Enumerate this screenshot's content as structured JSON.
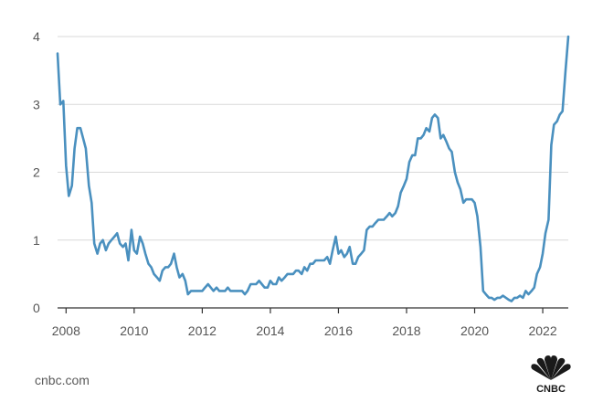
{
  "source": "cnbc.com",
  "logo_text": "CNBC",
  "colors": {
    "line": "#4a90bf",
    "grid": "#d9d9d9",
    "axis": "#333333",
    "text": "#555555"
  },
  "chart_data": {
    "type": "line",
    "xlim": [
      2007.75,
      2022.75
    ],
    "ylim": [
      0,
      4
    ],
    "yticks": [
      0,
      1,
      2,
      3,
      4
    ],
    "xticks": [
      2008,
      2010,
      2012,
      2014,
      2016,
      2018,
      2020,
      2022
    ],
    "grid": "horizontal",
    "series": [
      {
        "points": [
          [
            2007.75,
            3.75
          ],
          [
            2007.83,
            3.0
          ],
          [
            2007.92,
            3.05
          ],
          [
            2008.0,
            2.1
          ],
          [
            2008.08,
            1.65
          ],
          [
            2008.17,
            1.8
          ],
          [
            2008.25,
            2.35
          ],
          [
            2008.33,
            2.65
          ],
          [
            2008.42,
            2.65
          ],
          [
            2008.5,
            2.5
          ],
          [
            2008.58,
            2.35
          ],
          [
            2008.67,
            1.8
          ],
          [
            2008.75,
            1.55
          ],
          [
            2008.83,
            0.95
          ],
          [
            2008.92,
            0.8
          ],
          [
            2009.0,
            0.95
          ],
          [
            2009.08,
            1.0
          ],
          [
            2009.17,
            0.85
          ],
          [
            2009.25,
            0.95
          ],
          [
            2009.33,
            1.0
          ],
          [
            2009.42,
            1.05
          ],
          [
            2009.5,
            1.1
          ],
          [
            2009.58,
            0.95
          ],
          [
            2009.67,
            0.9
          ],
          [
            2009.75,
            0.95
          ],
          [
            2009.83,
            0.7
          ],
          [
            2009.92,
            1.15
          ],
          [
            2010.0,
            0.85
          ],
          [
            2010.08,
            0.8
          ],
          [
            2010.17,
            1.05
          ],
          [
            2010.25,
            0.95
          ],
          [
            2010.33,
            0.8
          ],
          [
            2010.42,
            0.65
          ],
          [
            2010.5,
            0.6
          ],
          [
            2010.58,
            0.5
          ],
          [
            2010.67,
            0.45
          ],
          [
            2010.75,
            0.4
          ],
          [
            2010.83,
            0.55
          ],
          [
            2010.92,
            0.6
          ],
          [
            2011.0,
            0.6
          ],
          [
            2011.08,
            0.65
          ],
          [
            2011.17,
            0.8
          ],
          [
            2011.25,
            0.6
          ],
          [
            2011.33,
            0.45
          ],
          [
            2011.42,
            0.5
          ],
          [
            2011.5,
            0.4
          ],
          [
            2011.58,
            0.2
          ],
          [
            2011.67,
            0.25
          ],
          [
            2011.75,
            0.25
          ],
          [
            2011.83,
            0.25
          ],
          [
            2011.92,
            0.25
          ],
          [
            2012.0,
            0.25
          ],
          [
            2012.08,
            0.3
          ],
          [
            2012.17,
            0.35
          ],
          [
            2012.25,
            0.3
          ],
          [
            2012.33,
            0.25
          ],
          [
            2012.42,
            0.3
          ],
          [
            2012.5,
            0.25
          ],
          [
            2012.58,
            0.25
          ],
          [
            2012.67,
            0.25
          ],
          [
            2012.75,
            0.3
          ],
          [
            2012.83,
            0.25
          ],
          [
            2012.92,
            0.25
          ],
          [
            2013.0,
            0.25
          ],
          [
            2013.08,
            0.25
          ],
          [
            2013.17,
            0.25
          ],
          [
            2013.25,
            0.2
          ],
          [
            2013.33,
            0.25
          ],
          [
            2013.42,
            0.35
          ],
          [
            2013.5,
            0.35
          ],
          [
            2013.58,
            0.35
          ],
          [
            2013.67,
            0.4
          ],
          [
            2013.75,
            0.35
          ],
          [
            2013.83,
            0.3
          ],
          [
            2013.92,
            0.3
          ],
          [
            2014.0,
            0.4
          ],
          [
            2014.08,
            0.35
          ],
          [
            2014.17,
            0.35
          ],
          [
            2014.25,
            0.45
          ],
          [
            2014.33,
            0.4
          ],
          [
            2014.42,
            0.45
          ],
          [
            2014.5,
            0.5
          ],
          [
            2014.58,
            0.5
          ],
          [
            2014.67,
            0.5
          ],
          [
            2014.75,
            0.55
          ],
          [
            2014.83,
            0.55
          ],
          [
            2014.92,
            0.5
          ],
          [
            2015.0,
            0.6
          ],
          [
            2015.08,
            0.55
          ],
          [
            2015.17,
            0.65
          ],
          [
            2015.25,
            0.65
          ],
          [
            2015.33,
            0.7
          ],
          [
            2015.42,
            0.7
          ],
          [
            2015.5,
            0.7
          ],
          [
            2015.58,
            0.7
          ],
          [
            2015.67,
            0.75
          ],
          [
            2015.75,
            0.65
          ],
          [
            2015.83,
            0.85
          ],
          [
            2015.92,
            1.05
          ],
          [
            2016.0,
            0.8
          ],
          [
            2016.08,
            0.85
          ],
          [
            2016.17,
            0.75
          ],
          [
            2016.25,
            0.8
          ],
          [
            2016.33,
            0.9
          ],
          [
            2016.42,
            0.65
          ],
          [
            2016.5,
            0.65
          ],
          [
            2016.58,
            0.75
          ],
          [
            2016.67,
            0.8
          ],
          [
            2016.75,
            0.85
          ],
          [
            2016.83,
            1.15
          ],
          [
            2016.92,
            1.2
          ],
          [
            2017.0,
            1.2
          ],
          [
            2017.08,
            1.25
          ],
          [
            2017.17,
            1.3
          ],
          [
            2017.25,
            1.3
          ],
          [
            2017.33,
            1.3
          ],
          [
            2017.42,
            1.35
          ],
          [
            2017.5,
            1.4
          ],
          [
            2017.58,
            1.35
          ],
          [
            2017.67,
            1.4
          ],
          [
            2017.75,
            1.5
          ],
          [
            2017.83,
            1.7
          ],
          [
            2017.92,
            1.8
          ],
          [
            2018.0,
            1.9
          ],
          [
            2018.08,
            2.15
          ],
          [
            2018.17,
            2.25
          ],
          [
            2018.25,
            2.25
          ],
          [
            2018.33,
            2.5
          ],
          [
            2018.42,
            2.5
          ],
          [
            2018.5,
            2.55
          ],
          [
            2018.58,
            2.65
          ],
          [
            2018.67,
            2.6
          ],
          [
            2018.75,
            2.8
          ],
          [
            2018.83,
            2.85
          ],
          [
            2018.92,
            2.8
          ],
          [
            2019.0,
            2.5
          ],
          [
            2019.08,
            2.55
          ],
          [
            2019.17,
            2.45
          ],
          [
            2019.25,
            2.35
          ],
          [
            2019.33,
            2.3
          ],
          [
            2019.42,
            2.0
          ],
          [
            2019.5,
            1.85
          ],
          [
            2019.58,
            1.75
          ],
          [
            2019.67,
            1.55
          ],
          [
            2019.75,
            1.6
          ],
          [
            2019.83,
            1.6
          ],
          [
            2019.92,
            1.6
          ],
          [
            2020.0,
            1.55
          ],
          [
            2020.08,
            1.35
          ],
          [
            2020.17,
            0.9
          ],
          [
            2020.25,
            0.25
          ],
          [
            2020.33,
            0.2
          ],
          [
            2020.42,
            0.15
          ],
          [
            2020.5,
            0.15
          ],
          [
            2020.58,
            0.12
          ],
          [
            2020.67,
            0.15
          ],
          [
            2020.75,
            0.15
          ],
          [
            2020.83,
            0.18
          ],
          [
            2020.92,
            0.15
          ],
          [
            2021.0,
            0.12
          ],
          [
            2021.08,
            0.1
          ],
          [
            2021.17,
            0.15
          ],
          [
            2021.25,
            0.15
          ],
          [
            2021.33,
            0.18
          ],
          [
            2021.42,
            0.15
          ],
          [
            2021.5,
            0.25
          ],
          [
            2021.58,
            0.2
          ],
          [
            2021.67,
            0.25
          ],
          [
            2021.75,
            0.3
          ],
          [
            2021.83,
            0.5
          ],
          [
            2021.92,
            0.6
          ],
          [
            2022.0,
            0.8
          ],
          [
            2022.08,
            1.1
          ],
          [
            2022.17,
            1.3
          ],
          [
            2022.25,
            2.4
          ],
          [
            2022.33,
            2.7
          ],
          [
            2022.42,
            2.75
          ],
          [
            2022.5,
            2.85
          ],
          [
            2022.58,
            2.9
          ],
          [
            2022.67,
            3.5
          ],
          [
            2022.75,
            4.0
          ]
        ]
      }
    ]
  }
}
